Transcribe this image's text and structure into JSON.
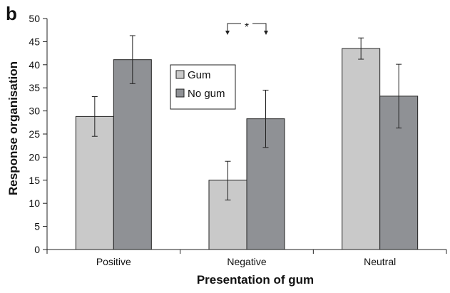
{
  "chart_data": {
    "type": "bar",
    "panel_label": "b",
    "xlabel": "Presentation of gum",
    "ylabel": "Response organisation",
    "ylim": [
      0,
      50
    ],
    "yticks": [
      0,
      5,
      10,
      15,
      20,
      25,
      30,
      35,
      40,
      45,
      50
    ],
    "categories": [
      "Positive",
      "Negative",
      "Neutral"
    ],
    "series": [
      {
        "name": "Gum",
        "color": "#c9c9c9",
        "values": [
          28.8,
          15.0,
          43.5
        ],
        "err_high": [
          33.1,
          19.1,
          45.8
        ],
        "err_low": [
          24.5,
          10.7,
          41.2
        ]
      },
      {
        "name": "No gum",
        "color": "#8f9195",
        "values": [
          41.1,
          28.3,
          33.2
        ],
        "err_high": [
          46.3,
          34.5,
          40.1
        ],
        "err_low": [
          35.9,
          22.1,
          26.3
        ]
      }
    ],
    "grid": false,
    "legend_position": "center-left",
    "annotation": {
      "text": "*",
      "between": [
        "Gum",
        "No gum"
      ],
      "category": "Negative"
    }
  }
}
